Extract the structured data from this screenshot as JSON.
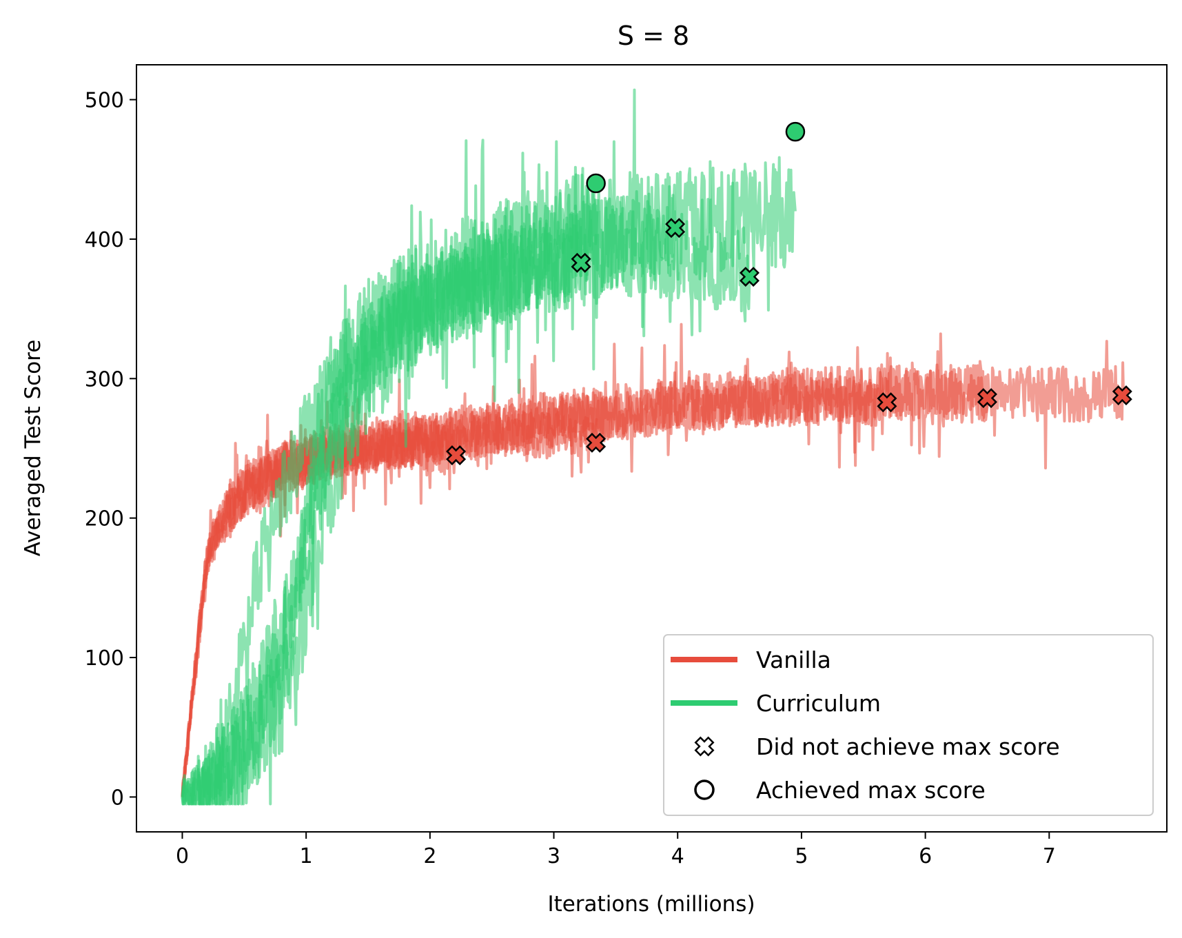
{
  "chart_data": {
    "type": "line",
    "title": "S = 8",
    "xlabel": "Iterations (millions)",
    "ylabel": "Averaged Test Score",
    "xlim": [
      -0.37,
      7.95
    ],
    "ylim": [
      -25,
      525
    ],
    "xticks": [
      0,
      1,
      2,
      3,
      4,
      5,
      6,
      7
    ],
    "yticks": [
      0,
      100,
      200,
      300,
      400,
      500
    ],
    "grid": false,
    "legend_position": "lower-right",
    "colors": {
      "Vanilla": "#e74c3c",
      "Curriculum": "#2ecc71"
    },
    "legend": [
      {
        "label": "Vanilla",
        "kind": "line",
        "color": "#e74c3c"
      },
      {
        "label": "Curriculum",
        "kind": "line",
        "color": "#2ecc71"
      },
      {
        "label": "Did not achieve max score",
        "kind": "x-marker"
      },
      {
        "label": "Achieved max score",
        "kind": "o-marker"
      }
    ],
    "series": [
      {
        "name": "Vanilla",
        "run": 1,
        "x": [
          0,
          0.1,
          0.2,
          0.3,
          0.5,
          0.7,
          1.0,
          1.3,
          1.6,
          1.9,
          2.2
        ],
        "y": [
          0,
          90,
          175,
          195,
          220,
          235,
          245,
          250,
          252,
          250,
          245
        ],
        "end_marker": "x",
        "noise": 15
      },
      {
        "name": "Vanilla",
        "run": 2,
        "x": [
          0,
          0.1,
          0.2,
          0.3,
          0.5,
          0.8,
          1.2,
          1.6,
          2.0,
          2.4,
          2.8,
          3.1,
          3.35
        ],
        "y": [
          0,
          85,
          170,
          192,
          218,
          236,
          245,
          250,
          255,
          258,
          260,
          258,
          255
        ],
        "end_marker": "x",
        "noise": 16
      },
      {
        "name": "Vanilla",
        "run": 3,
        "x": [
          0,
          0.1,
          0.2,
          0.3,
          0.5,
          0.8,
          1.2,
          1.7,
          2.2,
          2.8,
          3.4,
          4.0,
          4.6,
          5.2,
          5.7
        ],
        "y": [
          0,
          88,
          172,
          195,
          220,
          236,
          247,
          253,
          258,
          265,
          272,
          278,
          282,
          284,
          283
        ],
        "end_marker": "x",
        "noise": 17
      },
      {
        "name": "Vanilla",
        "run": 4,
        "x": [
          0,
          0.1,
          0.2,
          0.3,
          0.5,
          0.8,
          1.2,
          1.8,
          2.4,
          3.0,
          3.6,
          4.2,
          4.8,
          5.4,
          6.0,
          6.5
        ],
        "y": [
          0,
          86,
          170,
          193,
          219,
          235,
          246,
          254,
          262,
          270,
          276,
          282,
          286,
          288,
          288,
          286
        ],
        "end_marker": "x",
        "noise": 18
      },
      {
        "name": "Vanilla",
        "run": 5,
        "x": [
          0,
          0.1,
          0.2,
          0.3,
          0.5,
          0.8,
          1.2,
          1.8,
          2.4,
          3.0,
          3.6,
          4.2,
          4.8,
          5.4,
          6.0,
          6.6,
          7.2,
          7.6
        ],
        "y": [
          0,
          87,
          171,
          194,
          220,
          236,
          247,
          255,
          263,
          271,
          277,
          283,
          287,
          289,
          290,
          290,
          289,
          288
        ],
        "end_marker": "x",
        "noise": 20
      },
      {
        "name": "Curriculum",
        "run": 1,
        "x": [
          0,
          0.2,
          0.4,
          0.6,
          0.8,
          1.0,
          1.3,
          1.6,
          2.0,
          2.4,
          2.8,
          3.22
        ],
        "y": [
          0,
          5,
          60,
          160,
          215,
          260,
          310,
          335,
          355,
          370,
          378,
          383
        ],
        "end_marker": "x",
        "noise": 30
      },
      {
        "name": "Curriculum",
        "run": 2,
        "x": [
          0,
          0.3,
          0.6,
          0.85,
          1.0,
          1.2,
          1.5,
          1.9,
          2.3,
          2.7,
          3.0,
          3.35
        ],
        "y": [
          0,
          10,
          40,
          90,
          200,
          300,
          340,
          365,
          385,
          400,
          410,
          420
        ],
        "end_marker": "o",
        "noise": 32
      },
      {
        "name": "Curriculum",
        "run": 3,
        "x": [
          0,
          0.3,
          0.6,
          0.9,
          1.1,
          1.3,
          1.6,
          2.0,
          2.5,
          3.0,
          3.5,
          3.98
        ],
        "y": [
          0,
          15,
          70,
          150,
          230,
          290,
          330,
          355,
          375,
          390,
          400,
          408
        ],
        "end_marker": "x",
        "noise": 32
      },
      {
        "name": "Curriculum",
        "run": 4,
        "x": [
          0,
          0.3,
          0.6,
          0.9,
          1.1,
          1.3,
          1.6,
          2.0,
          2.5,
          3.0,
          3.5,
          4.0,
          4.3,
          4.58
        ],
        "y": [
          0,
          12,
          60,
          140,
          220,
          285,
          325,
          350,
          370,
          382,
          390,
          390,
          382,
          373
        ],
        "end_marker": "x",
        "noise": 34
      },
      {
        "name": "Curriculum",
        "run": 5,
        "x": [
          0,
          0.4,
          0.8,
          1.0,
          1.2,
          1.5,
          1.8,
          2.2,
          2.6,
          3.0,
          3.5,
          4.0,
          4.5,
          4.95
        ],
        "y": [
          0,
          20,
          70,
          140,
          230,
          300,
          340,
          365,
          380,
          395,
          405,
          410,
          415,
          420
        ],
        "end_marker": "o",
        "noise": 40
      }
    ],
    "markers": [
      {
        "series": "Vanilla",
        "type": "x",
        "x": 2.21,
        "y": 245
      },
      {
        "series": "Vanilla",
        "type": "x",
        "x": 3.34,
        "y": 254
      },
      {
        "series": "Vanilla",
        "type": "x",
        "x": 5.69,
        "y": 283
      },
      {
        "series": "Vanilla",
        "type": "x",
        "x": 6.5,
        "y": 286
      },
      {
        "series": "Vanilla",
        "type": "x",
        "x": 7.59,
        "y": 288
      },
      {
        "series": "Curriculum",
        "type": "x",
        "x": 3.22,
        "y": 383
      },
      {
        "series": "Curriculum",
        "type": "x",
        "x": 3.98,
        "y": 408
      },
      {
        "series": "Curriculum",
        "type": "x",
        "x": 4.58,
        "y": 373
      },
      {
        "series": "Curriculum",
        "type": "o",
        "x": 3.34,
        "y": 440
      },
      {
        "series": "Curriculum",
        "type": "o",
        "x": 4.95,
        "y": 477
      }
    ]
  }
}
